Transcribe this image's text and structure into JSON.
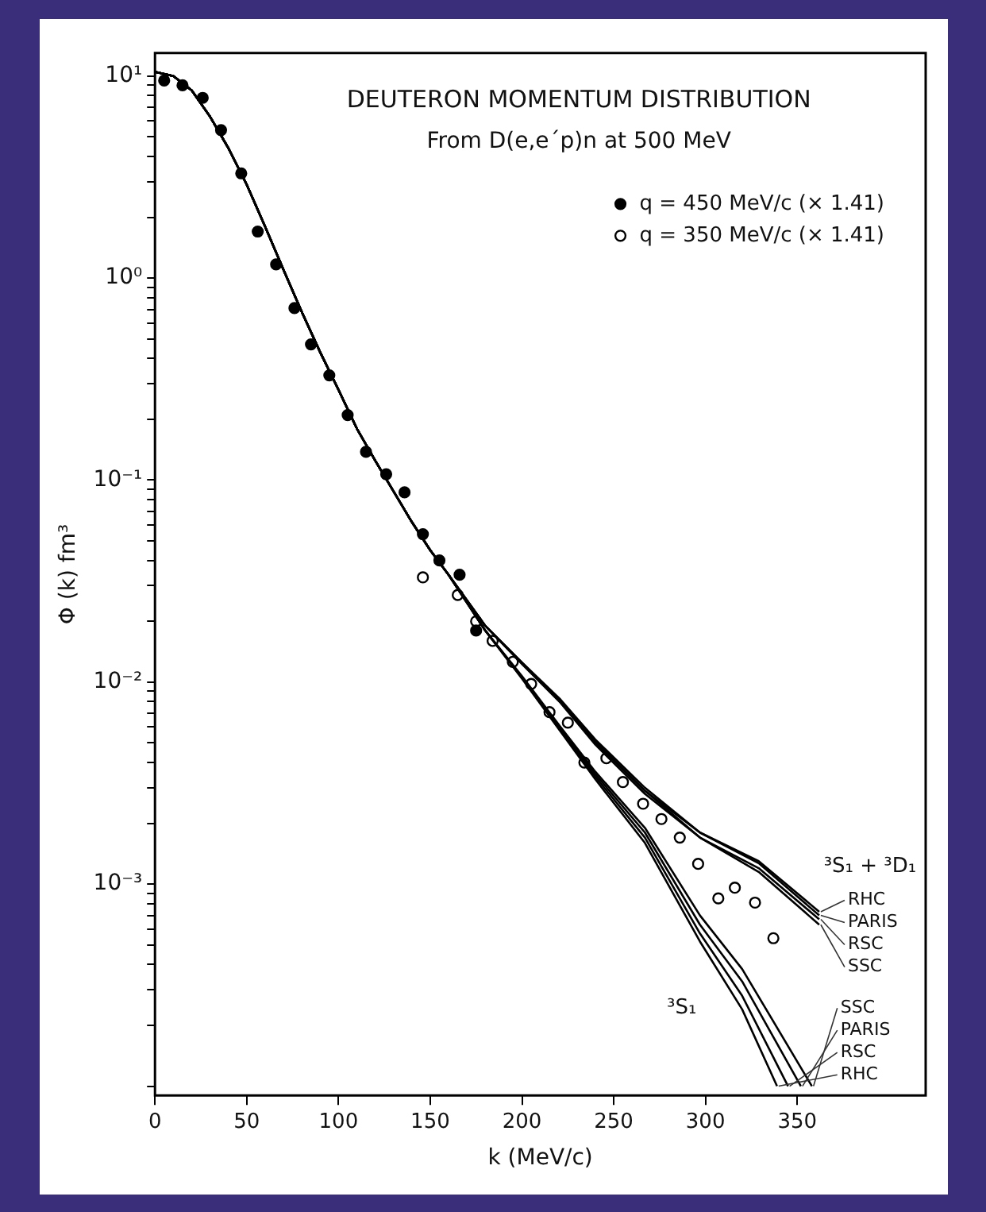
{
  "chart_data": {
    "type": "scatter",
    "title": "DEUTERON MOMENTUM DISTRIBUTION",
    "subtitle": "From D(e,e´p)n at 500 MeV",
    "xlabel": "k (MeV/c)",
    "ylabel": "Φ (k) fm³",
    "xlim": [
      0,
      420
    ],
    "xticks": [
      0,
      50,
      100,
      150,
      200,
      250,
      300,
      350
    ],
    "ylim": [
      9e-05,
      13
    ],
    "log": true,
    "grid": false,
    "legend": "top right",
    "yticks": [
      {
        "value": 0.0001,
        "label": null
      },
      {
        "value": 0.0002,
        "label": null
      },
      {
        "value": 0.0003,
        "label": null
      },
      {
        "value": 0.0004,
        "label": null
      },
      {
        "value": 0.0005,
        "label": null
      },
      {
        "value": 0.0006,
        "label": null
      },
      {
        "value": 0.0007,
        "label": null
      },
      {
        "value": 0.0008,
        "label": null
      },
      {
        "value": 0.0009,
        "label": null
      },
      {
        "value": 0.001,
        "label": "10⁻³"
      },
      {
        "value": 0.002,
        "label": null
      },
      {
        "value": 0.003,
        "label": null
      },
      {
        "value": 0.004,
        "label": null
      },
      {
        "value": 0.005,
        "label": null
      },
      {
        "value": 0.006,
        "label": null
      },
      {
        "value": 0.007,
        "label": null
      },
      {
        "value": 0.008,
        "label": null
      },
      {
        "value": 0.009,
        "label": null
      },
      {
        "value": 0.01,
        "label": "10⁻²"
      },
      {
        "value": 0.02,
        "label": null
      },
      {
        "value": 0.03,
        "label": null
      },
      {
        "value": 0.04,
        "label": null
      },
      {
        "value": 0.05,
        "label": null
      },
      {
        "value": 0.06,
        "label": null
      },
      {
        "value": 0.07,
        "label": null
      },
      {
        "value": 0.08,
        "label": null
      },
      {
        "value": 0.09,
        "label": null
      },
      {
        "value": 0.1,
        "label": "10⁻¹"
      },
      {
        "value": 0.2,
        "label": null
      },
      {
        "value": 0.3,
        "label": null
      },
      {
        "value": 0.4,
        "label": null
      },
      {
        "value": 0.5,
        "label": null
      },
      {
        "value": 0.6,
        "label": null
      },
      {
        "value": 0.7,
        "label": null
      },
      {
        "value": 0.8,
        "label": null
      },
      {
        "value": 0.9,
        "label": null
      },
      {
        "value": 1,
        "label": "10⁰"
      },
      {
        "value": 2,
        "label": null
      },
      {
        "value": 3,
        "label": null
      },
      {
        "value": 4,
        "label": null
      },
      {
        "value": 5,
        "label": null
      },
      {
        "value": 6,
        "label": null
      },
      {
        "value": 7,
        "label": null
      },
      {
        "value": 8,
        "label": null
      },
      {
        "value": 9,
        "label": null
      },
      {
        "value": 10,
        "label": "10¹"
      }
    ],
    "series": [
      {
        "type": "line",
        "marker": "none",
        "name": "RHC",
        "color": "#000000",
        "x": [
          0,
          10,
          20,
          30,
          40,
          50,
          60,
          70,
          80,
          90,
          100,
          110,
          120,
          130,
          140,
          150,
          160,
          180,
          200,
          221,
          240,
          267,
          297,
          329,
          362
        ],
        "values": [
          10.5,
          10,
          8.5,
          6.3,
          4.4,
          2.9,
          1.8,
          1.1,
          0.68,
          0.43,
          0.28,
          0.18,
          0.125,
          0.088,
          0.062,
          0.045,
          0.034,
          0.019,
          0.0125,
          0.0082,
          0.0052,
          0.003,
          0.0018,
          0.0013,
          0.00073
        ]
      },
      {
        "type": "line",
        "marker": "none",
        "name": "PARIS",
        "color": "#000000",
        "x": [
          0,
          10,
          20,
          30,
          40,
          50,
          60,
          70,
          80,
          90,
          100,
          110,
          120,
          130,
          140,
          150,
          160,
          180,
          200,
          221,
          240,
          267,
          297,
          329,
          362
        ],
        "values": [
          10.5,
          10,
          8.5,
          6.3,
          4.4,
          2.9,
          1.8,
          1.1,
          0.68,
          0.43,
          0.28,
          0.18,
          0.125,
          0.088,
          0.062,
          0.045,
          0.034,
          0.019,
          0.0125,
          0.0081,
          0.0051,
          0.0029,
          0.0018,
          0.00127,
          0.0007
        ]
      },
      {
        "type": "line",
        "marker": "none",
        "name": "RSC",
        "color": "#000000",
        "x": [
          0,
          10,
          20,
          30,
          40,
          50,
          60,
          70,
          80,
          90,
          100,
          110,
          120,
          130,
          140,
          150,
          160,
          180,
          200,
          221,
          240,
          267,
          297,
          329,
          362
        ],
        "values": [
          10.5,
          10,
          8.5,
          6.3,
          4.4,
          2.9,
          1.8,
          1.1,
          0.68,
          0.43,
          0.28,
          0.18,
          0.125,
          0.088,
          0.062,
          0.045,
          0.034,
          0.019,
          0.0124,
          0.008,
          0.005,
          0.0029,
          0.0017,
          0.0012,
          0.00067
        ]
      },
      {
        "type": "line",
        "marker": "none",
        "name": "SSC",
        "color": "#000000",
        "x": [
          0,
          10,
          20,
          30,
          40,
          50,
          60,
          70,
          80,
          90,
          100,
          110,
          120,
          130,
          140,
          150,
          160,
          180,
          200,
          221,
          240,
          267,
          297,
          329,
          362
        ],
        "values": [
          10.5,
          10,
          8.5,
          6.3,
          4.4,
          2.9,
          1.8,
          1.1,
          0.68,
          0.43,
          0.28,
          0.18,
          0.125,
          0.088,
          0.062,
          0.045,
          0.034,
          0.019,
          0.0123,
          0.0079,
          0.0049,
          0.0028,
          0.0017,
          0.00115,
          0.00063
        ]
      },
      {
        "type": "line",
        "marker": "none",
        "name": "SSC",
        "color": "#000000",
        "x": [
          0,
          10,
          20,
          30,
          40,
          50,
          60,
          70,
          80,
          90,
          100,
          110,
          120,
          130,
          140,
          150,
          160,
          180,
          200,
          221,
          240,
          267,
          297,
          320,
          358
        ],
        "values": [
          10.5,
          10,
          8.5,
          6.3,
          4.4,
          2.9,
          1.8,
          1.1,
          0.68,
          0.43,
          0.28,
          0.18,
          0.125,
          0.088,
          0.062,
          0.045,
          0.034,
          0.018,
          0.0107,
          0.006,
          0.0036,
          0.0019,
          0.0007,
          0.00038,
          0.0001
        ]
      },
      {
        "type": "line",
        "marker": "none",
        "name": "PARIS",
        "color": "#000000",
        "x": [
          0,
          10,
          20,
          30,
          40,
          50,
          60,
          70,
          80,
          90,
          100,
          110,
          120,
          130,
          140,
          150,
          160,
          180,
          200,
          221,
          240,
          267,
          297,
          320,
          352
        ],
        "values": [
          10.5,
          10,
          8.5,
          6.3,
          4.4,
          2.9,
          1.8,
          1.1,
          0.68,
          0.43,
          0.28,
          0.18,
          0.125,
          0.088,
          0.062,
          0.045,
          0.034,
          0.018,
          0.0106,
          0.0059,
          0.0035,
          0.0018,
          0.00063,
          0.00033,
          0.0001
        ]
      },
      {
        "type": "line",
        "marker": "none",
        "name": "RSC",
        "color": "#000000",
        "x": [
          0,
          10,
          20,
          30,
          40,
          50,
          60,
          70,
          80,
          90,
          100,
          110,
          120,
          130,
          140,
          150,
          160,
          180,
          200,
          221,
          240,
          267,
          297,
          320,
          345
        ],
        "values": [
          10.5,
          10,
          8.5,
          6.3,
          4.4,
          2.9,
          1.8,
          1.1,
          0.68,
          0.43,
          0.28,
          0.18,
          0.125,
          0.088,
          0.062,
          0.045,
          0.034,
          0.018,
          0.0105,
          0.0058,
          0.0034,
          0.0017,
          0.00057,
          0.00028,
          0.0001
        ]
      },
      {
        "type": "line",
        "marker": "none",
        "name": "RHC",
        "color": "#000000",
        "x": [
          0,
          10,
          20,
          30,
          40,
          50,
          60,
          70,
          80,
          90,
          100,
          110,
          120,
          130,
          140,
          150,
          160,
          180,
          200,
          221,
          240,
          267,
          297,
          320,
          339
        ],
        "values": [
          10.5,
          10,
          8.5,
          6.3,
          4.4,
          2.9,
          1.8,
          1.1,
          0.68,
          0.43,
          0.28,
          0.18,
          0.125,
          0.088,
          0.062,
          0.045,
          0.034,
          0.018,
          0.0104,
          0.0057,
          0.0033,
          0.0016,
          0.00052,
          0.00024,
          0.0001
        ]
      },
      {
        "type": "scatter",
        "marker": "circle",
        "name": "q = 450 MeV/c (× 1.41)",
        "color": "#000000",
        "x": [
          5,
          15,
          26,
          36,
          47,
          56,
          66,
          76,
          85,
          95,
          105,
          115,
          126,
          136,
          146,
          155,
          166,
          175
        ],
        "values": [
          9.5,
          9,
          7.8,
          5.4,
          3.3,
          1.7,
          1.17,
          0.71,
          0.47,
          0.33,
          0.21,
          0.138,
          0.107,
          0.087,
          0.054,
          0.04,
          0.034,
          0.018
        ]
      },
      {
        "type": "scatter",
        "marker": "circle",
        "name": "q = 350 MeV/c (× 1.41)",
        "color": "#ffffff",
        "x": [
          146,
          165,
          175,
          184,
          195,
          205,
          215,
          225,
          234,
          246,
          255,
          266,
          276,
          286,
          296,
          307,
          316,
          327,
          337
        ],
        "values": [
          0.033,
          0.027,
          0.02,
          0.016,
          0.0126,
          0.0098,
          0.0071,
          0.0063,
          0.004,
          0.0042,
          0.0032,
          0.0025,
          0.0021,
          0.0017,
          0.00126,
          0.00085,
          0.00096,
          0.00081,
          0.00054
        ]
      }
    ],
    "annotations": [
      "³S₁ + ³D₁",
      "³S₁"
    ]
  }
}
